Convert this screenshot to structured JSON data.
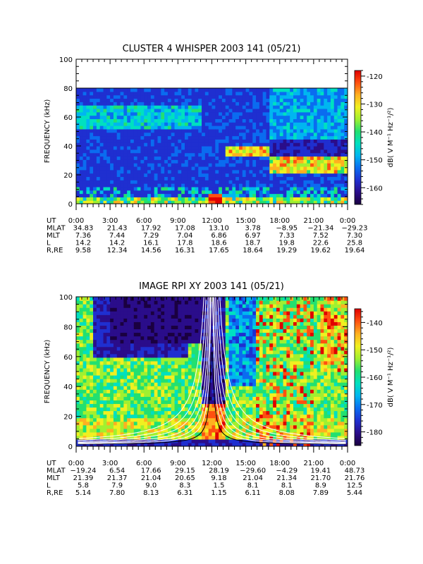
{
  "colors": {
    "scale": [
      "#1a0040",
      "#2a0d8a",
      "#1f2fd0",
      "#0a6cf0",
      "#00b6f0",
      "#00e0c0",
      "#22e070",
      "#a0f030",
      "#f0f020",
      "#ffb020",
      "#ff5010",
      "#e00000"
    ],
    "line": "#ffffff"
  },
  "chart_data": [
    {
      "type": "heatmap",
      "title": "CLUSTER 4 WHISPER 2003 141 (05/21)",
      "ylabel": "FREQUENCY (kHz)",
      "ylim": [
        0,
        100
      ],
      "yticks": [
        "0",
        "20",
        "40",
        "60",
        "80",
        "100"
      ],
      "data_top_khz": 80,
      "colorbar": {
        "label": "dB( V M⁻¹ Hz⁻¹/²)",
        "ticks": [
          "-120",
          "-130",
          "-140",
          "-150",
          "-160"
        ],
        "range": [
          -166,
          -118
        ]
      },
      "ephemeris": {
        "rows": [
          {
            "name": "UT",
            "values": [
              "0:00",
              "3:00",
              "6:00",
              "9:00",
              "12:00",
              "15:00",
              "18:00",
              "21:00",
              "0:00"
            ]
          },
          {
            "name": "MLAT",
            "values": [
              "34.83",
              "21.43",
              "17.92",
              "17.08",
              "13.10",
              "3.78",
              "−8.95",
              "−21.34",
              "−29.23"
            ]
          },
          {
            "name": "MLT",
            "values": [
              "7.36",
              "7.44",
              "7.29",
              "7.04",
              "6.86",
              "6.97",
              "7.33",
              "7.52",
              "7.30"
            ]
          },
          {
            "name": "L",
            "values": [
              "14.2",
              "14.2",
              "16.1",
              "17.8",
              "18.6",
              "18.7",
              "19.8",
              "22.6",
              "25.8"
            ]
          },
          {
            "name": "R,RE",
            "values": [
              "9.58",
              "12.34",
              "14.56",
              "16.31",
              "17.65",
              "18.64",
              "19.29",
              "19.62",
              "19.64"
            ]
          }
        ]
      }
    },
    {
      "type": "heatmap",
      "title": "IMAGE RPI XY 2003 141 (05/21)",
      "ylabel": "FREQUENCY (kHz)",
      "ylim": [
        0,
        100
      ],
      "yticks": [
        "0",
        "20",
        "40",
        "60",
        "80",
        "100"
      ],
      "data_top_khz": 100,
      "colorbar": {
        "label": "dB( V M⁻¹ Hz⁻¹/²)",
        "ticks": [
          "-140",
          "-150",
          "-160",
          "-170",
          "-180"
        ],
        "range": [
          -185,
          -135
        ]
      },
      "ephemeris": {
        "rows": [
          {
            "name": "UT",
            "values": [
              "0:00",
              "3:00",
              "6:00",
              "9:00",
              "12:00",
              "15:00",
              "18:00",
              "21:00",
              "0:00"
            ]
          },
          {
            "name": "MLAT",
            "values": [
              "−19.24",
              "6.54",
              "17.66",
              "29.15",
              "28.19",
              "−29.60",
              "−4.29",
              "19.41",
              "48.73"
            ]
          },
          {
            "name": "MLT",
            "values": [
              "21.39",
              "21.37",
              "21.04",
              "20.65",
              "9.18",
              "21.04",
              "21.34",
              "21.70",
              "21.76"
            ]
          },
          {
            "name": "L",
            "values": [
              "5.8",
              "7.9",
              "9.0",
              "8.3",
              "1.5",
              "8.1",
              "8.1",
              "8.9",
              "12.5"
            ]
          },
          {
            "name": "R,RE",
            "values": [
              "5.14",
              "7.80",
              "8.13",
              "6.31",
              "1.15",
              "6.11",
              "8.08",
              "7.89",
              "5.44"
            ]
          }
        ]
      }
    }
  ]
}
